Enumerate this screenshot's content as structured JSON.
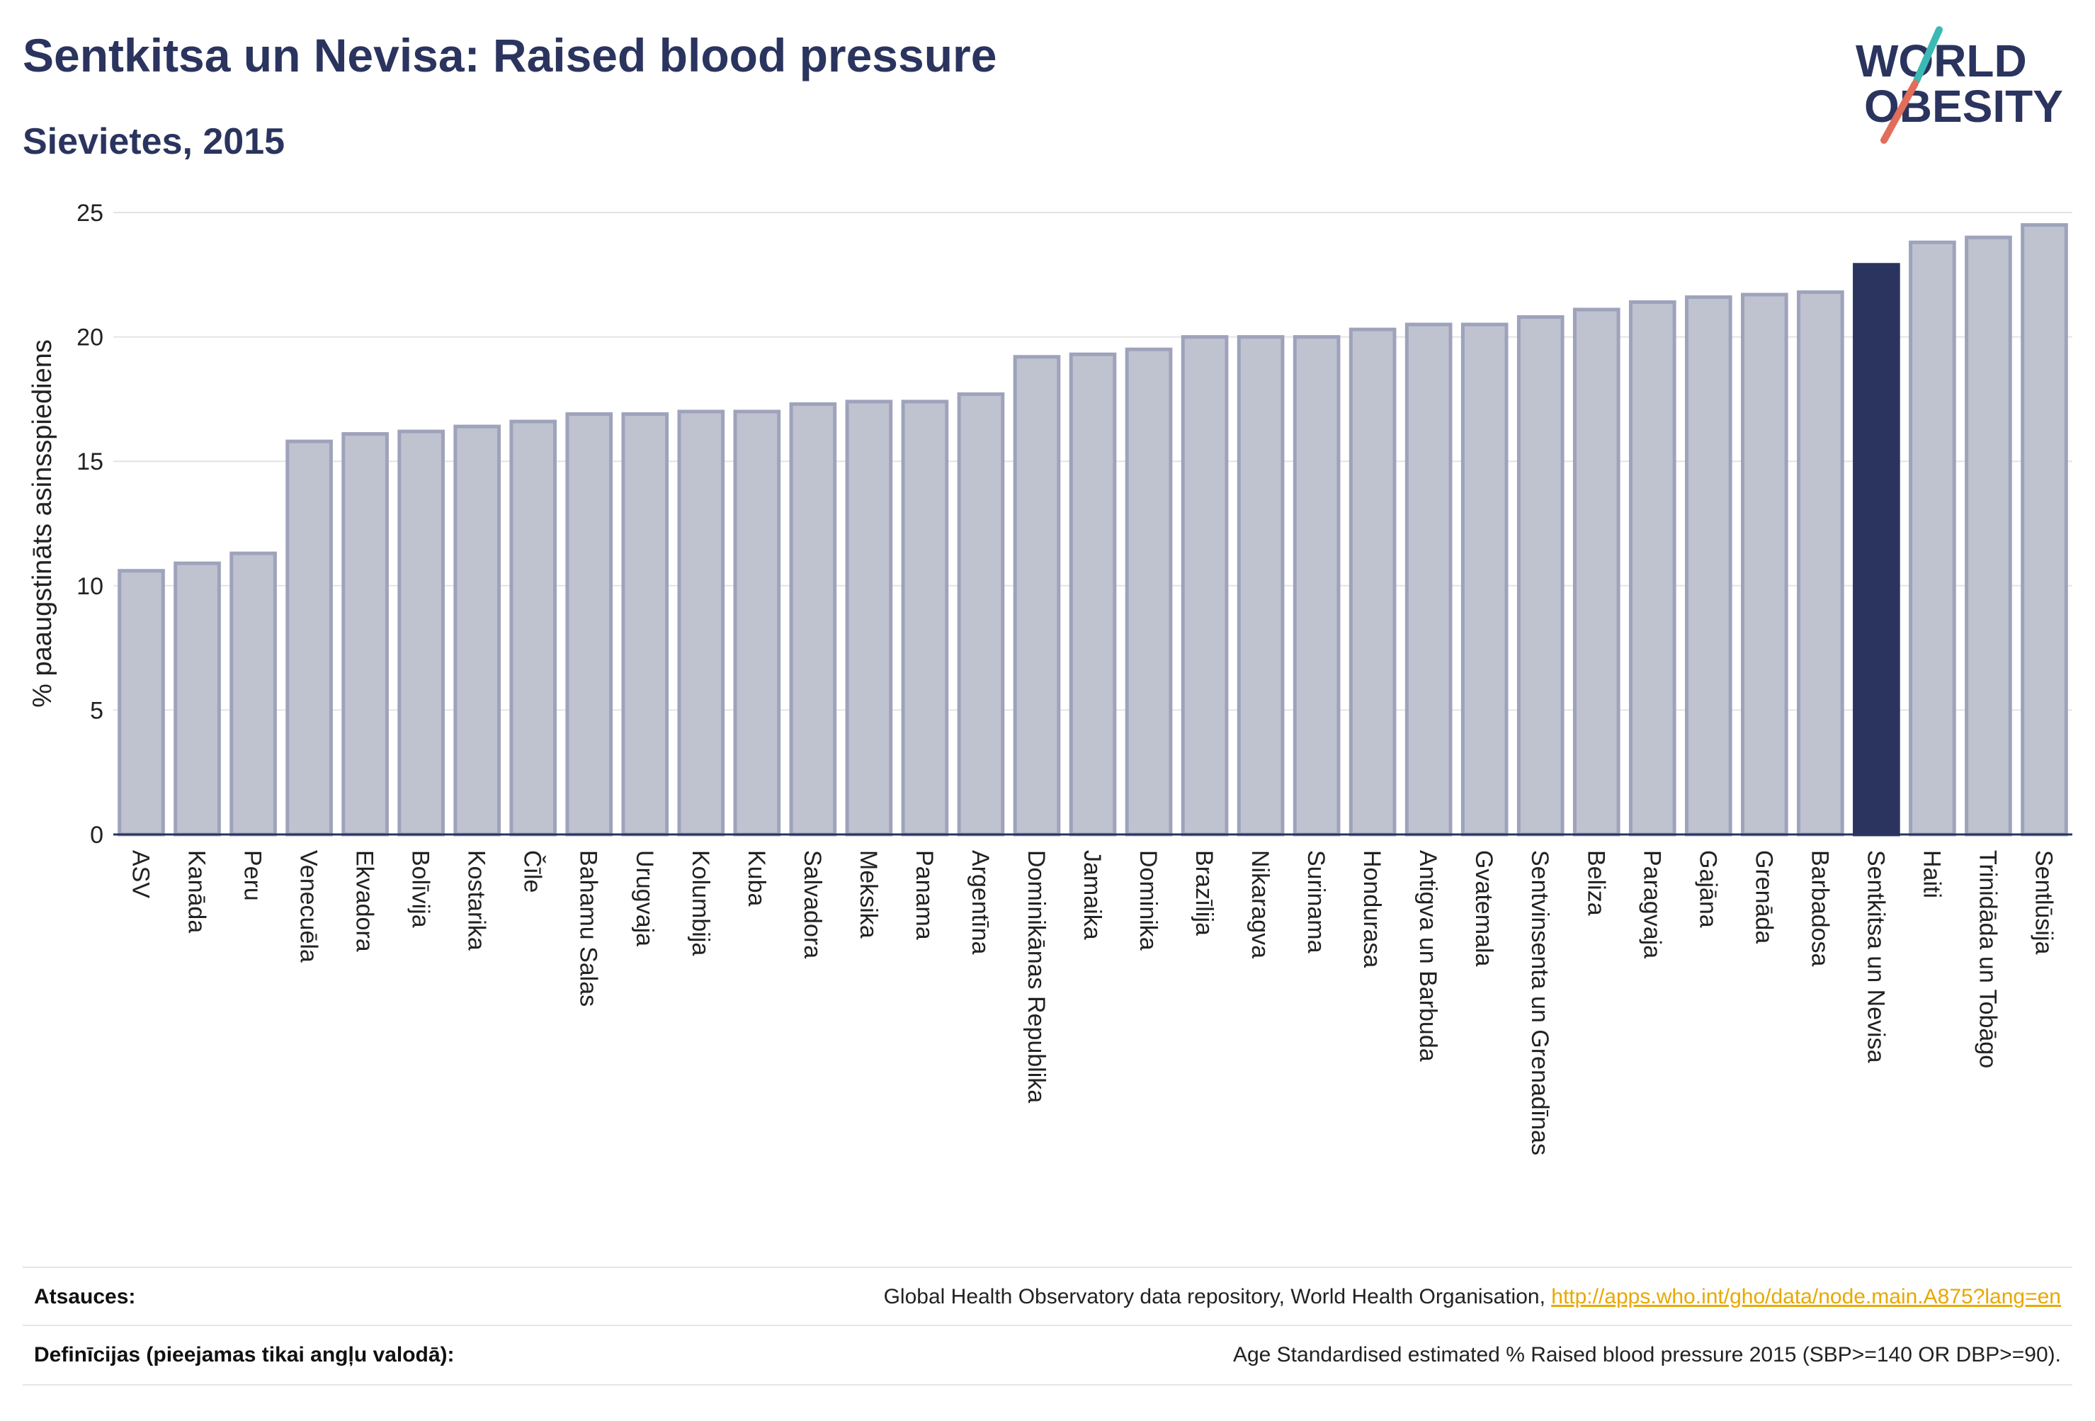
{
  "header": {
    "title": "Sentkitsa un Nevisa: Raised blood pressure",
    "subtitle": "Sievietes, 2015"
  },
  "logo": {
    "line1": "WORLD",
    "line2": "OBESITY"
  },
  "chart_data": {
    "type": "bar",
    "title": "Sentkitsa un Nevisa: Raised blood pressure",
    "subtitle": "Sievietes, 2015",
    "xlabel": "",
    "ylabel": "% paaugstināts asinsspiediens",
    "ylim": [
      0,
      25
    ],
    "yticks": [
      0,
      5,
      10,
      15,
      20,
      25
    ],
    "grid": true,
    "highlight": "Sentkitsa un Nevisa",
    "colors": {
      "bar": "#bfc2cf",
      "bar_edge": "#9ea3bb",
      "highlight": "#2a345e"
    },
    "categories": [
      "ASV",
      "Kanāda",
      "Peru",
      "Venecuēla",
      "Ekvadora",
      "Bolīvija",
      "Kostarika",
      "Čīle",
      "Bahamu Salas",
      "Urugvaja",
      "Kolumbija",
      "Kuba",
      "Salvadora",
      "Meksika",
      "Panama",
      "Argentīna",
      "Dominikānas Republika",
      "Jamaika",
      "Dominika",
      "Brazīlija",
      "Nikaragva",
      "Surinama",
      "Hondurasa",
      "Antigva un Barbuda",
      "Gvatemala",
      "Sentvinsenta un Grenadīnas",
      "Beliza",
      "Paragvaja",
      "Gajāna",
      "Grenāda",
      "Barbadosa",
      "Sentkitsa un Nevisa",
      "Haiti",
      "Trinidāda un Tobāgo",
      "Sentlūsija"
    ],
    "values": [
      10.6,
      10.9,
      11.3,
      15.8,
      16.1,
      16.2,
      16.4,
      16.6,
      16.9,
      16.9,
      17.0,
      17.0,
      17.3,
      17.4,
      17.4,
      17.7,
      19.2,
      19.3,
      19.5,
      20.0,
      20.0,
      20.0,
      20.3,
      20.5,
      20.5,
      20.8,
      21.1,
      21.4,
      21.6,
      21.7,
      21.8,
      22.9,
      23.8,
      24.0,
      24.5
    ]
  },
  "footer": {
    "sources_label": "Atsauces:",
    "sources_text": "Global Health Observatory data repository, World Health Organisation, ",
    "sources_link": "http://apps.who.int/gho/data/node.main.A875?lang=en",
    "definitions_label": "Definīcijas (pieejamas tikai angļu valodā):",
    "definitions_text": "Age Standardised estimated % Raised blood pressure 2015 (SBP>=140 OR DBP>=90)."
  }
}
